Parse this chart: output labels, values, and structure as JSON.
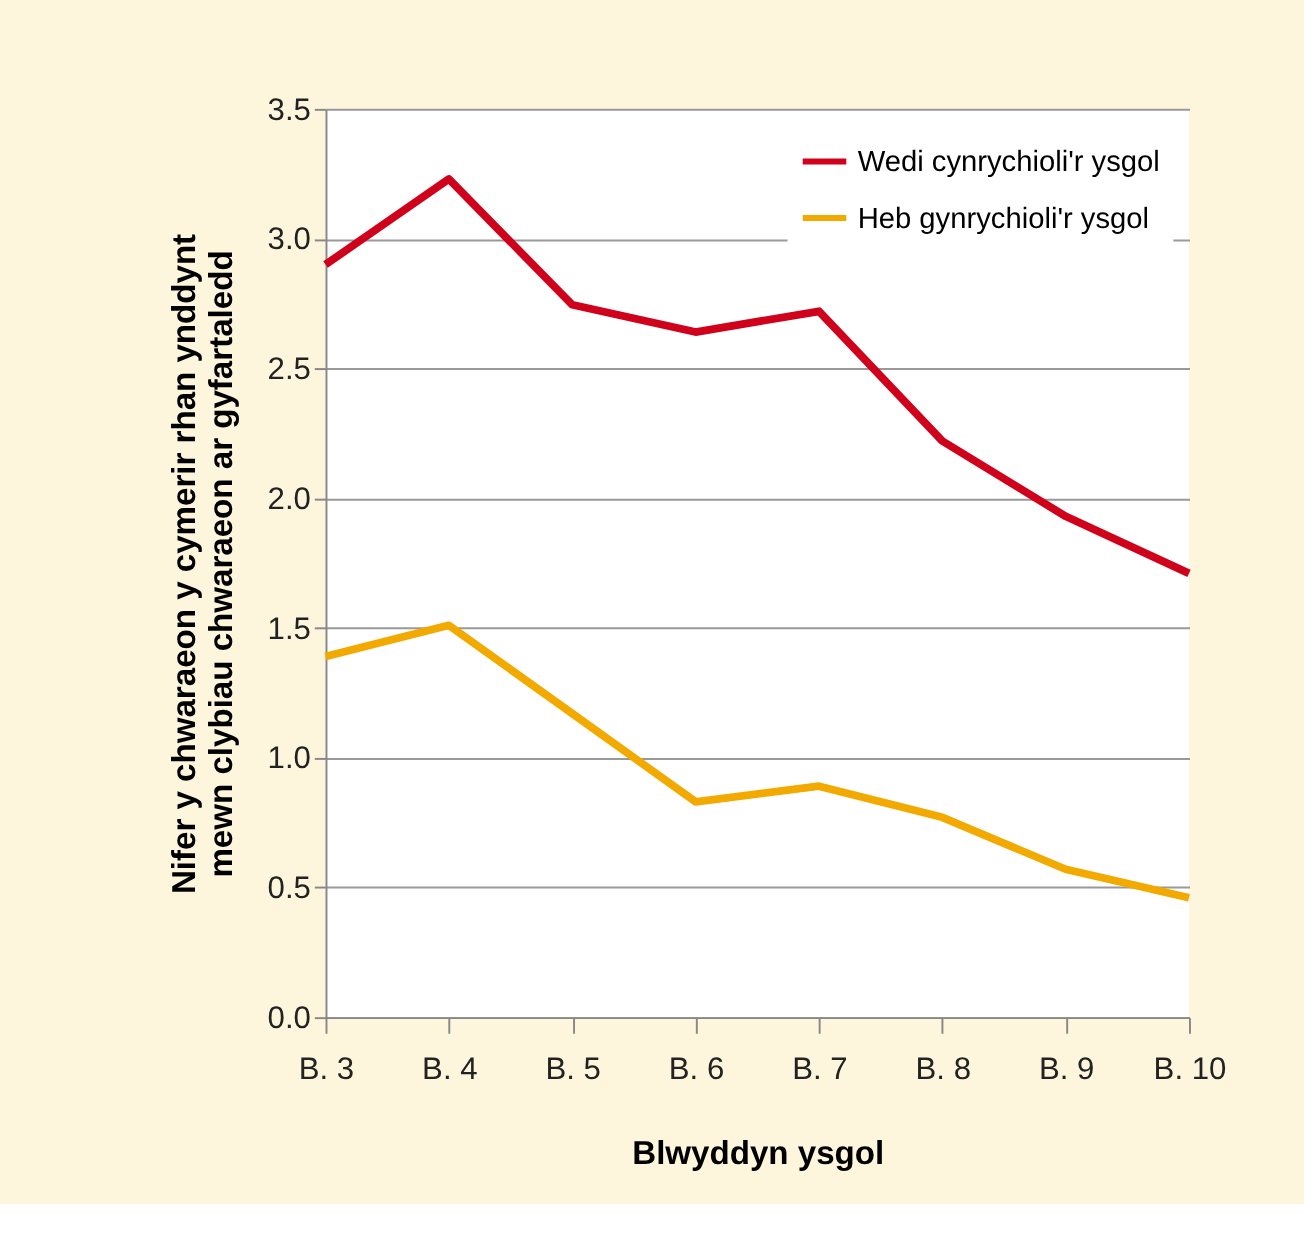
{
  "chart_data": {
    "type": "line",
    "xlabel": "Blwyddyn ysgol",
    "ylabel": "Nifer y chwaraeon y cymerir rhan ynddynt\nmewn clybiau chwaraeon ar gyfartaledd",
    "categories": [
      "B. 3",
      "B. 4",
      "B. 5",
      "B. 6",
      "B. 7",
      "B. 8",
      "B. 9",
      "B. 10"
    ],
    "series": [
      {
        "name": "Wedi cynrychioli'r ysgol",
        "color": "#d0021b",
        "values": [
          2.9,
          3.23,
          2.745,
          2.64,
          2.72,
          2.22,
          1.93,
          1.71
        ]
      },
      {
        "name": "Heb gynrychioli'r ysgol",
        "color": "#f2a900",
        "values": [
          1.39,
          1.51,
          1.17,
          0.83,
          0.89,
          0.77,
          0.57,
          0.46
        ]
      }
    ],
    "ylim": [
      0,
      3.5
    ],
    "yticks": [
      {
        "value": 0,
        "label": "0.0"
      },
      0.5,
      {
        "value": 1,
        "label": "1.0"
      },
      1.5,
      {
        "value": 2,
        "label": "2.0"
      },
      2.5,
      {
        "value": 3,
        "label": "3.0"
      },
      3.5
    ],
    "grid": "y",
    "legend": "top right",
    "marker": "none",
    "line_style": "solid"
  }
}
